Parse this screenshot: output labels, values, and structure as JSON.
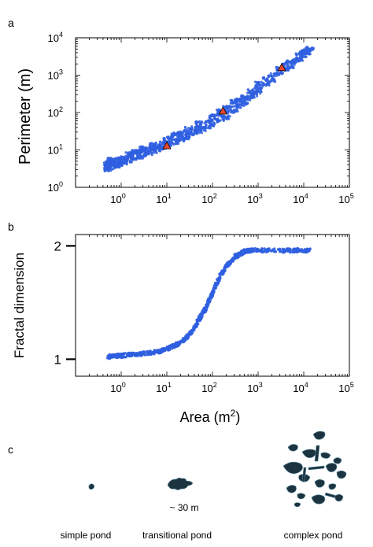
{
  "panels": {
    "a_label": "a",
    "b_label": "b",
    "c_label": "c"
  },
  "colors": {
    "points": "#2f5fe0",
    "marker": "#e8462c",
    "pond": "#1c3340",
    "pond_edge": "#5e8ea0"
  },
  "chart_data": [
    {
      "panel": "a",
      "type": "scatter",
      "title": "",
      "xlabel": "",
      "ylabel": "Perimeter  (m)",
      "xscale": "log",
      "yscale": "log",
      "xlim": [
        0.1,
        100000
      ],
      "ylim": [
        1,
        10000
      ],
      "x_ticks": [
        {
          "base": "10",
          "exp": "0"
        },
        {
          "base": "10",
          "exp": "1"
        },
        {
          "base": "10",
          "exp": "2"
        },
        {
          "base": "10",
          "exp": "3"
        },
        {
          "base": "10",
          "exp": "4"
        },
        {
          "base": "10",
          "exp": "5"
        }
      ],
      "y_ticks": [
        {
          "base": "10",
          "exp": "0"
        },
        {
          "base": "10",
          "exp": "1"
        },
        {
          "base": "10",
          "exp": "2"
        },
        {
          "base": "10",
          "exp": "3"
        },
        {
          "base": "10",
          "exp": "4"
        }
      ],
      "series": [
        {
          "marker": "dot",
          "points": [
            [
              0.5,
              3.0
            ],
            [
              0.5,
              3.6
            ],
            [
              0.5,
              4.6
            ],
            [
              0.55,
              3.2
            ],
            [
              0.6,
              4.2
            ],
            [
              0.6,
              5.5
            ],
            [
              0.7,
              3.5
            ],
            [
              0.7,
              4.6
            ],
            [
              0.8,
              3.8
            ],
            [
              0.8,
              5.0
            ],
            [
              0.9,
              4.0
            ],
            [
              0.9,
              6.0
            ],
            [
              1.0,
              4.2
            ],
            [
              1.0,
              5.2
            ],
            [
              1.2,
              4.6
            ],
            [
              1.2,
              6.0
            ],
            [
              1.5,
              5.2
            ],
            [
              1.5,
              6.8
            ],
            [
              1.5,
              8.0
            ],
            [
              2.0,
              6.0
            ],
            [
              2.0,
              7.8
            ],
            [
              2.0,
              9.0
            ],
            [
              2.5,
              6.6
            ],
            [
              2.5,
              8.5
            ],
            [
              3.0,
              7.3
            ],
            [
              3.0,
              9.5
            ],
            [
              3.0,
              11.0
            ],
            [
              4.0,
              8.3
            ],
            [
              4.0,
              10.5
            ],
            [
              5.0,
              9.3
            ],
            [
              5.0,
              12.0
            ],
            [
              5.0,
              14.0
            ],
            [
              6.0,
              10.2
            ],
            [
              6.0,
              13.0
            ],
            [
              8.0,
              11.6
            ],
            [
              8.0,
              15.0
            ],
            [
              10.0,
              13.0
            ],
            [
              10.0,
              16.0
            ],
            [
              10.0,
              20.0
            ],
            [
              12.0,
              14.0
            ],
            [
              15.0,
              16.0
            ],
            [
              15.0,
              20.0
            ],
            [
              15.0,
              26.0
            ],
            [
              20.0,
              19.0
            ],
            [
              20.0,
              24.0
            ],
            [
              20.0,
              30.0
            ],
            [
              25.0,
              21.0
            ],
            [
              30.0,
              24.0
            ],
            [
              30.0,
              30.0
            ],
            [
              30.0,
              38.0
            ],
            [
              40.0,
              28.0
            ],
            [
              40.0,
              36.0
            ],
            [
              50.0,
              32.0
            ],
            [
              50.0,
              42.0
            ],
            [
              50.0,
              52.0
            ],
            [
              60.0,
              36.0
            ],
            [
              80.0,
              42.0
            ],
            [
              80.0,
              56.0
            ],
            [
              100.0,
              48.0
            ],
            [
              100.0,
              65.0
            ],
            [
              100.0,
              80.0
            ],
            [
              150.0,
              62.0
            ],
            [
              150.0,
              85.0
            ],
            [
              150.0,
              115.0
            ],
            [
              200.0,
              75.0
            ],
            [
              200.0,
              105.0
            ],
            [
              200.0,
              140.0
            ],
            [
              300.0,
              110.0
            ],
            [
              300.0,
              160.0
            ],
            [
              300.0,
              200.0
            ],
            [
              400.0,
              150.0
            ],
            [
              400.0,
              210.0
            ],
            [
              500.0,
              180.0
            ],
            [
              500.0,
              260.0
            ],
            [
              600.0,
              230.0
            ],
            [
              700.0,
              270.0
            ],
            [
              700.0,
              370.0
            ],
            [
              800.0,
              300.0
            ],
            [
              1000.0,
              360.0
            ],
            [
              1000.0,
              480.0
            ],
            [
              1000.0,
              600.0
            ],
            [
              1500.0,
              560.0
            ],
            [
              1500.0,
              780.0
            ],
            [
              2000.0,
              720.0
            ],
            [
              2000.0,
              1000.0
            ],
            [
              3000.0,
              1100.0
            ],
            [
              3000.0,
              1500.0
            ],
            [
              4000.0,
              1400.0
            ],
            [
              4000.0,
              1900.0
            ],
            [
              5000.0,
              1700.0
            ],
            [
              5000.0,
              2300.0
            ],
            [
              6000.0,
              2100.0
            ],
            [
              7000.0,
              2500.0
            ],
            [
              8000.0,
              2700.0
            ],
            [
              8000.0,
              3600.0
            ],
            [
              10000.0,
              3400.0
            ],
            [
              10000.0,
              4200.0
            ],
            [
              12000.0,
              4000.0
            ],
            [
              12000.0,
              4800.0
            ],
            [
              14000.0,
              5100.0
            ]
          ]
        },
        {
          "marker": "triangle",
          "points": [
            [
              10,
              13
            ],
            [
              170,
              110
            ],
            [
              3300,
              1600
            ]
          ]
        }
      ]
    },
    {
      "panel": "b",
      "type": "scatter",
      "title": "",
      "xlabel": "Area  (m²)",
      "xlabel_main": "Area  (m",
      "xlabel_sup": "2",
      "xlabel_close": ")",
      "ylabel": "Fractal dimension",
      "xscale": "log",
      "xlim": [
        0.1,
        100000
      ],
      "ylim": [
        0.85,
        2.1
      ],
      "x_ticks": [
        {
          "base": "10",
          "exp": "0"
        },
        {
          "base": "10",
          "exp": "1"
        },
        {
          "base": "10",
          "exp": "2"
        },
        {
          "base": "10",
          "exp": "3"
        },
        {
          "base": "10",
          "exp": "4"
        },
        {
          "base": "10",
          "exp": "5"
        }
      ],
      "y_ticks": [
        "1",
        "2"
      ],
      "y_tick_values": [
        1,
        2
      ],
      "series": [
        {
          "marker": "dot",
          "points": [
            [
              0.5,
              1.02
            ],
            [
              0.7,
              1.03
            ],
            [
              1.0,
              1.03
            ],
            [
              1.5,
              1.04
            ],
            [
              2.0,
              1.04
            ],
            [
              3.0,
              1.05
            ],
            [
              5.0,
              1.06
            ],
            [
              7.0,
              1.07
            ],
            [
              10.0,
              1.09
            ],
            [
              15.0,
              1.12
            ],
            [
              20.0,
              1.15
            ],
            [
              30.0,
              1.21
            ],
            [
              40.0,
              1.28
            ],
            [
              50.0,
              1.35
            ],
            [
              60.0,
              1.4
            ],
            [
              70.0,
              1.44
            ],
            [
              80.0,
              1.5
            ],
            [
              100.0,
              1.58
            ],
            [
              120.0,
              1.66
            ],
            [
              150.0,
              1.74
            ],
            [
              200.0,
              1.82
            ],
            [
              300.0,
              1.9
            ],
            [
              400.0,
              1.93
            ],
            [
              500.0,
              1.95
            ],
            [
              700.0,
              1.96
            ],
            [
              1000.0,
              1.96
            ],
            [
              2000.0,
              1.96
            ],
            [
              4000.0,
              1.96
            ],
            [
              7000.0,
              1.96
            ],
            [
              10000.0,
              1.96
            ],
            [
              14000.0,
              1.96
            ]
          ],
          "spread": [
            0.035,
            0.035,
            0.035,
            0.035,
            0.035,
            0.035,
            0.035,
            0.035,
            0.04,
            0.04,
            0.045,
            0.05,
            0.06,
            0.06,
            0.06,
            0.06,
            0.06,
            0.06,
            0.06,
            0.05,
            0.05,
            0.045,
            0.04,
            0.035,
            0.035,
            0.035,
            0.035,
            0.035,
            0.035,
            0.035,
            0.035
          ]
        }
      ]
    }
  ],
  "panel_c": {
    "scale_text": "~ 30 m",
    "captions": [
      "simple pond",
      "transitional pond",
      "complex pond"
    ]
  }
}
